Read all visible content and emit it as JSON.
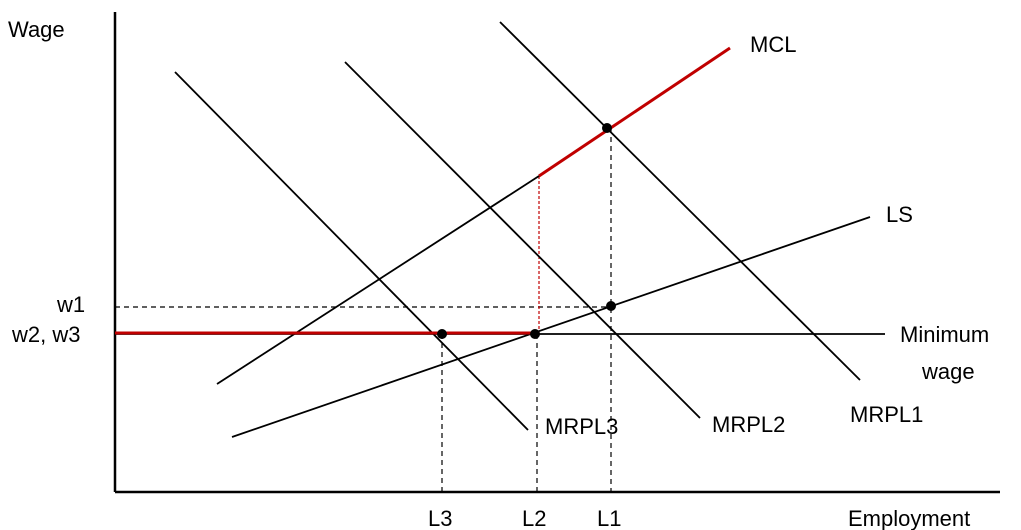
{
  "axes": {
    "y_label": "Wage",
    "x_label": "Employment"
  },
  "wage_labels": {
    "w1": "w1",
    "w23": "w2, w3"
  },
  "employment_labels": {
    "l3": "L3",
    "l2": "L2",
    "l1": "L1"
  },
  "curves": {
    "mcl": "MCL",
    "ls": "LS",
    "min_wage_line1": "Minimum",
    "min_wage_line2": "wage",
    "mrpl1": "MRPL1",
    "mrpl2": "MRPL2",
    "mrpl3": "MRPL3"
  },
  "colors": {
    "ink": "#000000",
    "highlight": "#c00000"
  }
}
